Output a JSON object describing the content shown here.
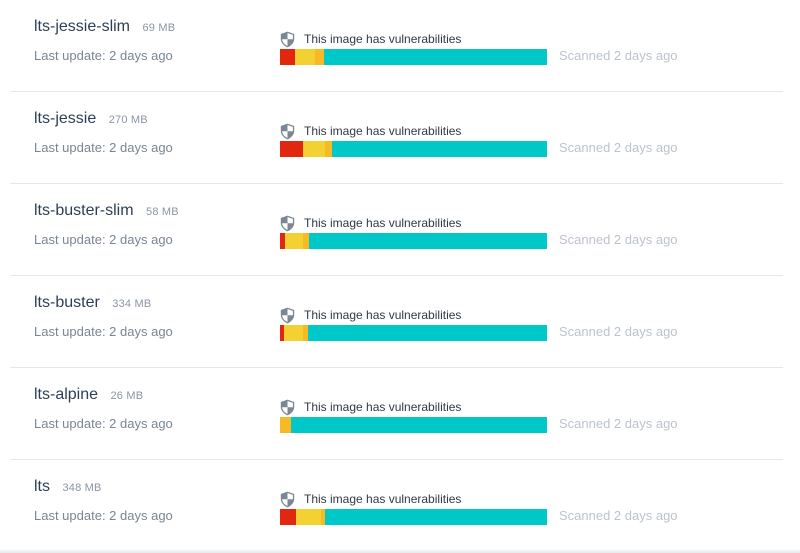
{
  "vuln_text": "This image has vulnerabilities",
  "update_text": "Last update: 2 days ago",
  "scanned_text": "Scanned 2 days ago",
  "colors": {
    "critical": "#e2270f",
    "high": "#f4d132",
    "medium": "#f7b924",
    "clean": "#00c8c9"
  },
  "tags": [
    {
      "name": "lts-jessie-slim",
      "size": "69 MB",
      "breakdown": [
        0.055,
        0.075,
        0.035,
        0.835
      ]
    },
    {
      "name": "lts-jessie",
      "size": "270 MB",
      "breakdown": [
        0.085,
        0.085,
        0.025,
        0.805
      ]
    },
    {
      "name": "lts-buster-slim",
      "size": "58 MB",
      "breakdown": [
        0.02,
        0.065,
        0.025,
        0.89
      ]
    },
    {
      "name": "lts-buster",
      "size": "334 MB",
      "breakdown": [
        0.015,
        0.07,
        0.02,
        0.895
      ]
    },
    {
      "name": "lts-alpine",
      "size": "26 MB",
      "breakdown": [
        0.0,
        0.0,
        0.04,
        0.96
      ]
    },
    {
      "name": "lts",
      "size": "348 MB",
      "breakdown": [
        0.06,
        0.095,
        0.015,
        0.83
      ]
    }
  ]
}
